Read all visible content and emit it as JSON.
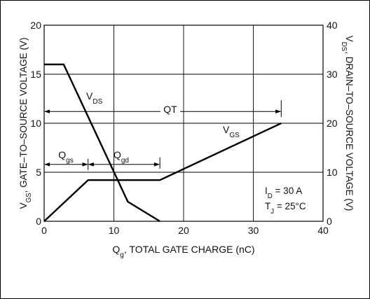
{
  "chart_data": {
    "type": "line",
    "xlabel": "Q",
    "xlabel_sub": "g",
    "xlabel_rest": ", TOTAL GATE CHARGE (nC)",
    "ylabel_left": "V",
    "ylabel_left_sub": "GS",
    "ylabel_left_rest": ", GATE–TO–SOURCE VOLTAGE (V)",
    "ylabel_right": "V",
    "ylabel_right_sub": "DS",
    "ylabel_right_rest": ", DRAIN–TO–SOURCE VOLTAGE (V)",
    "xlim": [
      0,
      40
    ],
    "ylim_left": [
      0,
      20
    ],
    "ylim_right": [
      0,
      40
    ],
    "x_ticks": [
      0,
      10,
      20,
      30,
      40
    ],
    "y_left_ticks": [
      0,
      5,
      10,
      15,
      20
    ],
    "y_right_ticks": [
      0,
      10,
      20,
      30,
      40
    ],
    "grid": true,
    "series": [
      {
        "name": "V",
        "name_sub": "GS",
        "axis": "left",
        "x": [
          0,
          6.3,
          16.6,
          34
        ],
        "y": [
          0,
          4.2,
          4.2,
          10
        ]
      },
      {
        "name": "V",
        "name_sub": "DS",
        "axis": "right",
        "x": [
          0,
          2.8,
          12,
          16.6
        ],
        "y": [
          32,
          32,
          4,
          0
        ]
      }
    ],
    "annotations": {
      "qt": {
        "label": "QT",
        "x_from": 0,
        "x_to": 34,
        "y": 11.2
      },
      "qgs": {
        "label": "Q",
        "label_sub": "gs",
        "x_from": 0,
        "x_to": 6.3,
        "y": 5.8
      },
      "qgd": {
        "label": "Q",
        "label_sub": "gd",
        "x_from": 6.3,
        "x_to": 16.6,
        "y": 5.8
      },
      "conditions": [
        {
          "label": "I",
          "sub": "D",
          "rest": " = 30 A"
        },
        {
          "label": "T",
          "sub": "J",
          "rest": " = 25°C"
        }
      ]
    }
  }
}
